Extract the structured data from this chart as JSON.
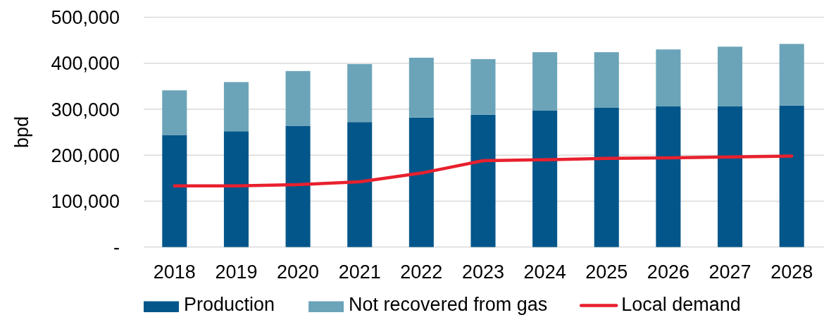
{
  "chart_data": {
    "type": "bar",
    "stacked": true,
    "ylabel": "bpd",
    "categories": [
      "2018",
      "2019",
      "2020",
      "2021",
      "2022",
      "2023",
      "2024",
      "2025",
      "2026",
      "2027",
      "2028"
    ],
    "series": [
      {
        "name": "Production",
        "color": "#03568a",
        "values": [
          244000,
          252000,
          264000,
          272000,
          282000,
          288000,
          297000,
          303000,
          306000,
          306000,
          308000
        ]
      },
      {
        "name": "Not recovered from gas",
        "color": "#6ba4b9",
        "values": [
          97000,
          107000,
          119000,
          126000,
          130000,
          121000,
          127000,
          121000,
          124000,
          130000,
          134000
        ]
      },
      {
        "name": "Local demand",
        "type": "line",
        "color": "#e8202e",
        "values": [
          133000,
          133000,
          136000,
          142000,
          161000,
          188000,
          190000,
          193000,
          194000,
          196000,
          198000
        ]
      }
    ],
    "ylim": [
      0,
      500000
    ],
    "yticks": [
      {
        "value": 0,
        "label": "-"
      },
      {
        "value": 100000,
        "label": "100,000"
      },
      {
        "value": 200000,
        "label": "200,000"
      },
      {
        "value": 300000,
        "label": "300,000"
      },
      {
        "value": 400000,
        "label": "400,000"
      },
      {
        "value": 500000,
        "label": "500,000"
      }
    ],
    "grid": "y",
    "legend": "bottom"
  }
}
